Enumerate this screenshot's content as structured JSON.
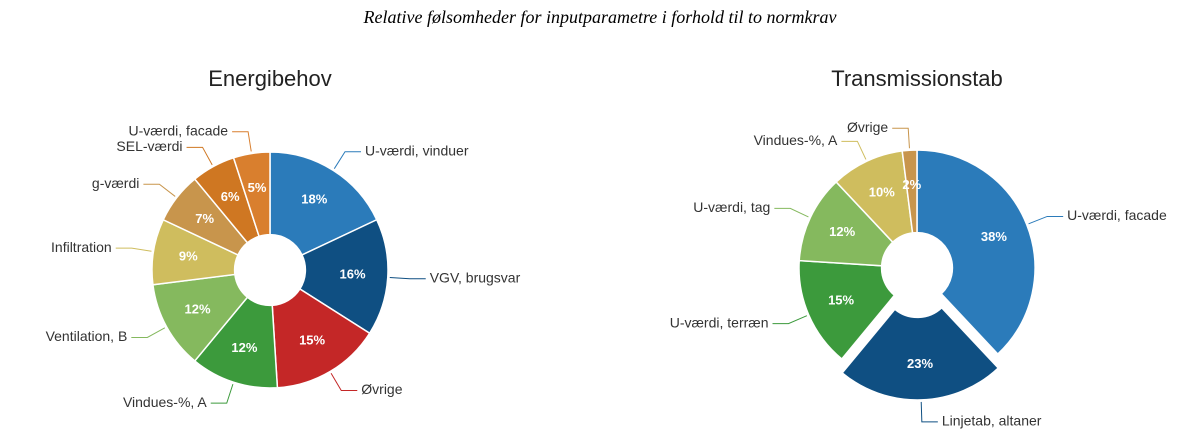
{
  "title": "Relative følsomheder for inputparametre i forhold til to normkrav",
  "chart_data": [
    {
      "type": "donut",
      "title": "Energibehov",
      "categories": [
        "U-værdi, vinduer",
        "VGV, brugsvar",
        "Øvrige",
        "Vindues-%, A",
        "Ventilation, B",
        "Infiltration",
        "g-værdi",
        "SEL-værdi",
        "U-værdi, facade"
      ],
      "values": [
        18,
        16,
        15,
        12,
        12,
        9,
        7,
        6,
        5
      ],
      "value_labels": [
        "18%",
        "16%",
        "15%",
        "12%",
        "12%",
        "9%",
        "7%",
        "6%",
        "5%"
      ],
      "colors": [
        "#2b7bba",
        "#0f4f82",
        "#c42727",
        "#3c9a3c",
        "#85b95e",
        "#cfbd5e",
        "#c8954c",
        "#cf7722",
        "#d97f2e"
      ]
    },
    {
      "type": "donut",
      "title": "Transmissionstab",
      "categories": [
        "U-værdi, facade",
        "Linjetab, altaner",
        "U-værdi, terræn",
        "U-værdi, tag",
        "Vindues-%, A",
        "Øvrige"
      ],
      "values": [
        38,
        23,
        15,
        12,
        10,
        2
      ],
      "value_labels": [
        "38%",
        "23%",
        "15%",
        "12%",
        "10%",
        "2%"
      ],
      "colors": [
        "#2b7bba",
        "#0f4f82",
        "#3c9a3c",
        "#85b95e",
        "#cfbd5e",
        "#c8954c"
      ],
      "exploded": [
        1
      ]
    }
  ]
}
